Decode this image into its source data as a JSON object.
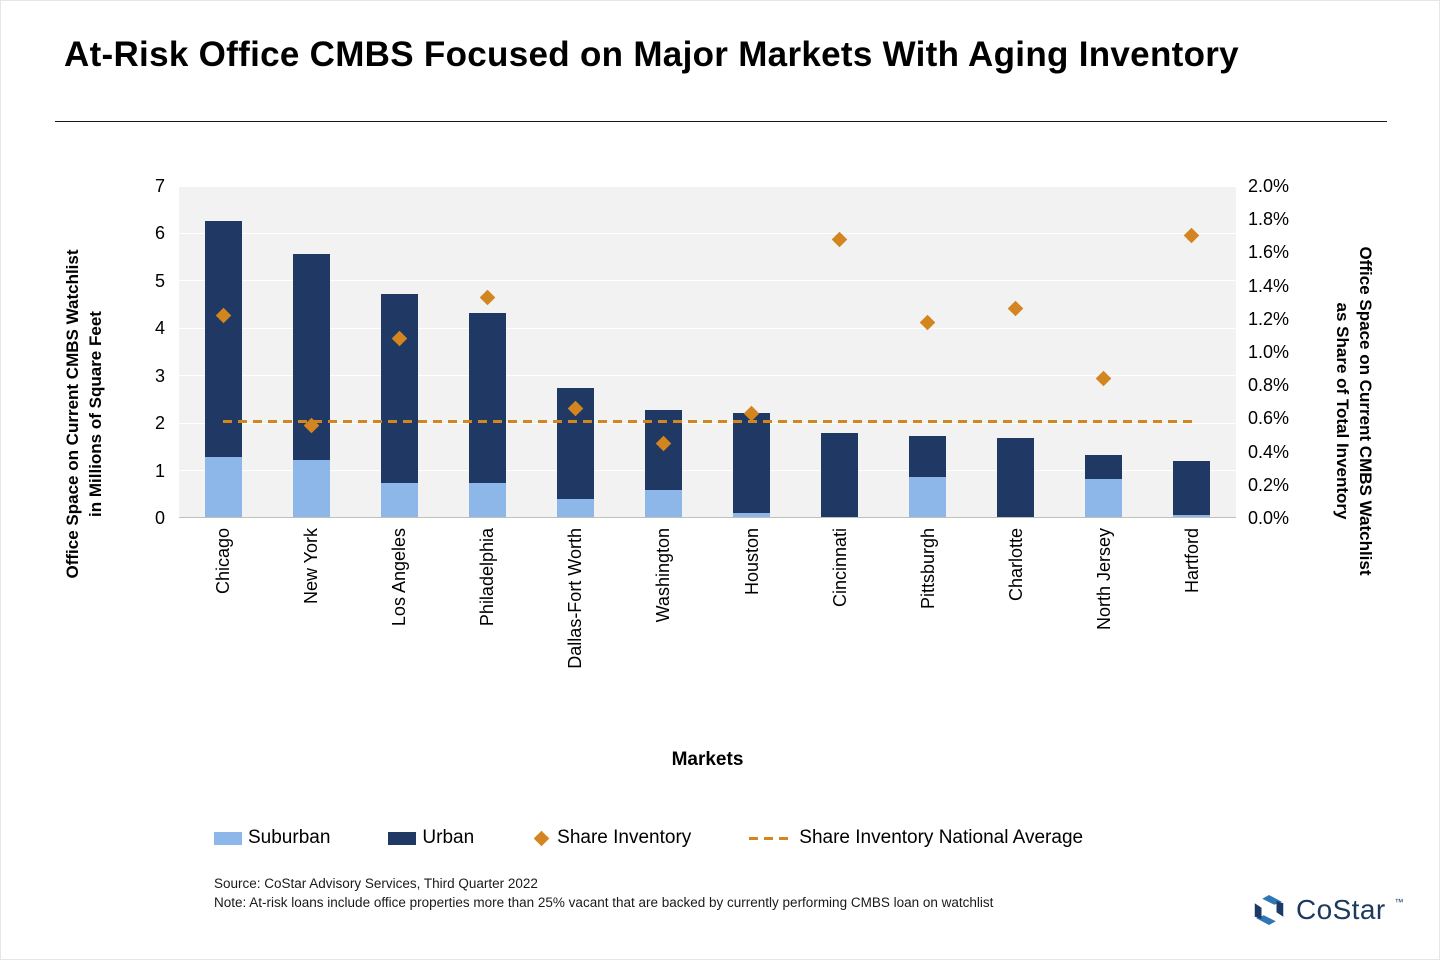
{
  "title": "At-Risk Office CMBS Focused on Major Markets With Aging Inventory",
  "chart_data": {
    "type": "bar",
    "variant": "stacked-column-with-scatter-overlay",
    "categories": [
      "Chicago",
      "New York",
      "Los Angeles",
      "Philadelphia",
      "Dallas-Fort Worth",
      "Washington",
      "Houston",
      "Cincinnati",
      "Pittsburgh",
      "Charlotte",
      "North Jersey",
      "Hartford"
    ],
    "series": [
      {
        "name": "Suburban",
        "type": "column",
        "axis": "left",
        "color": "#8DB7E8",
        "values": [
          1.27,
          1.2,
          0.72,
          0.72,
          0.38,
          0.57,
          0.08,
          0.0,
          0.84,
          0.0,
          0.8,
          0.05
        ]
      },
      {
        "name": "Urban",
        "type": "column",
        "axis": "left",
        "color": "#1F3864",
        "values": [
          4.98,
          4.35,
          3.98,
          3.58,
          2.34,
          1.69,
          2.12,
          1.77,
          0.87,
          1.67,
          0.51,
          1.13
        ]
      },
      {
        "name": "Share Inventory",
        "type": "scatter-diamond",
        "axis": "right",
        "color": "#D3861F",
        "values_pct": [
          1.22,
          0.56,
          1.08,
          1.33,
          0.66,
          0.45,
          0.63,
          1.68,
          1.18,
          1.26,
          0.84,
          1.7
        ]
      },
      {
        "name": "Share Inventory National Average",
        "type": "dashed-line",
        "axis": "right",
        "color": "#D3861F",
        "value_pct": 0.58
      }
    ],
    "left_axis": {
      "title": "Office Space on Current CMBS Watchlist\nin Millions of Square Feet",
      "min": 0,
      "max": 7,
      "tick_labels": [
        "0",
        "1",
        "2",
        "3",
        "4",
        "5",
        "6",
        "7"
      ]
    },
    "right_axis": {
      "title": "Office Space on Current CMBS Watchlist\nas Share of Total Inventory",
      "min_pct": 0.0,
      "max_pct": 2.0,
      "tick_labels": [
        "0.0%",
        "0.2%",
        "0.4%",
        "0.6%",
        "0.8%",
        "1.0%",
        "1.2%",
        "1.4%",
        "1.6%",
        "1.8%",
        "2.0%"
      ]
    },
    "x_axis_title": "Markets",
    "plot_background": "#F2F2F2",
    "gridlines": true,
    "legend_position": "bottom"
  },
  "legend": [
    {
      "label": "Suburban",
      "swatch": "rect",
      "color": "#8DB7E8"
    },
    {
      "label": "Urban",
      "swatch": "rect",
      "color": "#1F3864"
    },
    {
      "label": "Share Inventory",
      "swatch": "diamond",
      "color": "#D3861F"
    },
    {
      "label": "Share Inventory National Average",
      "swatch": "dash",
      "color": "#D3861F"
    }
  ],
  "footer": {
    "source": "Source: CoStar Advisory Services, Third Quarter 2022",
    "note": "Note:  At-risk loans include office properties more than 25% vacant that are backed by currently performing CMBS loan on watchlist"
  },
  "logo": {
    "text": "CoStar",
    "tm": "™"
  }
}
